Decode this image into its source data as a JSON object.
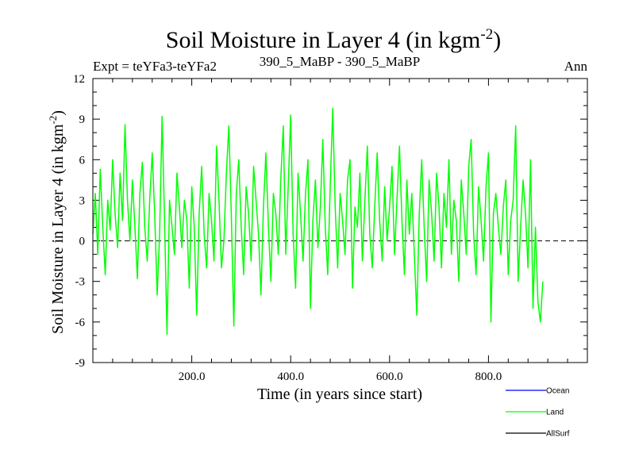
{
  "chart_data": {
    "type": "line",
    "title": "Soil Moisture in Layer 4 (in kgm",
    "title_sup": "-2",
    "title_close": ")",
    "subtitle_left": "Expt = teYFa3-teYFa2",
    "subtitle_center": "390_5_MaBP - 390_5_MaBP",
    "subtitle_right": "Ann",
    "xlabel": "Time (in years since start)",
    "ylabel": "Soil Moisture in Layer 4 (in kgm",
    "ylabel_sup": "-2",
    "ylabel_close": ")",
    "xlim": [
      0,
      1000
    ],
    "ylim": [
      -9,
      12
    ],
    "x_ticks": [
      200,
      400,
      600,
      800
    ],
    "x_tick_labels": [
      "200.0",
      "400.0",
      "600.0",
      "800.0"
    ],
    "y_ticks": [
      -9,
      -6,
      -3,
      0,
      3,
      6,
      9,
      12
    ],
    "y_tick_labels": [
      "-9",
      "-6",
      "-3",
      "0",
      "3",
      "6",
      "9",
      "12"
    ],
    "zero_line": {
      "y": 0,
      "style": "dashed"
    },
    "legend": [
      {
        "name": "Ocean",
        "color": "#0000ff"
      },
      {
        "name": "Land",
        "color": "#00ff00"
      },
      {
        "name": "AllSurf",
        "color": "#000000"
      }
    ],
    "series": [
      {
        "name": "Land",
        "color": "#00ff00",
        "x_start": 0,
        "x_step": 5,
        "values": [
          0.5,
          3.5,
          -1.0,
          5.3,
          1.0,
          -2.5,
          3.0,
          0.8,
          6.0,
          2.0,
          -0.5,
          5.0,
          1.5,
          8.6,
          3.0,
          0.0,
          4.5,
          1.0,
          -2.8,
          3.5,
          5.8,
          1.0,
          -1.5,
          3.0,
          6.5,
          2.0,
          -4.0,
          0.5,
          9.2,
          1.5,
          -6.9,
          3.0,
          1.0,
          -1.0,
          5.0,
          2.5,
          -0.5,
          3.0,
          1.5,
          -3.5,
          4.0,
          1.0,
          -5.5,
          2.0,
          5.5,
          0.5,
          -2.0,
          3.5,
          1.5,
          -1.5,
          7.0,
          3.0,
          -2.0,
          0.0,
          5.0,
          8.5,
          2.0,
          -6.3,
          3.5,
          6.0,
          1.0,
          -2.5,
          4.0,
          2.0,
          -1.5,
          5.5,
          3.0,
          0.5,
          -4.0,
          2.5,
          6.5,
          1.0,
          -3.0,
          3.5,
          2.0,
          -1.0,
          4.5,
          8.5,
          -1.0,
          4.0,
          9.3,
          0.5,
          -3.5,
          5.0,
          2.0,
          -1.5,
          3.5,
          6.0,
          -5.0,
          1.5,
          4.5,
          -0.5,
          2.5,
          7.5,
          1.0,
          -2.5,
          4.0,
          9.8,
          2.5,
          -2.0,
          3.5,
          1.5,
          -1.0,
          4.5,
          6.0,
          -3.5,
          2.5,
          1.0,
          5.0,
          -1.5,
          3.0,
          7.0,
          0.5,
          -2.0,
          2.5,
          6.5,
          1.5,
          -1.5,
          4.0,
          0.0,
          2.5,
          5.5,
          -1.0,
          3.0,
          7.0,
          1.5,
          -2.5,
          4.5,
          0.5,
          3.5,
          -1.0,
          -5.5,
          2.0,
          6.0,
          1.0,
          -3.0,
          4.5,
          2.0,
          -1.5,
          5.0,
          2.5,
          -2.0,
          3.5,
          1.0,
          6.0,
          -1.0,
          3.0,
          1.5,
          -3.0,
          4.5,
          2.0,
          -1.0,
          5.5,
          7.5,
          0.5,
          -2.5,
          4.0,
          1.5,
          -1.5,
          4.0,
          6.5,
          -6.0,
          2.0,
          3.5,
          1.0,
          -1.0,
          2.5,
          4.5,
          -2.5,
          1.5,
          3.0,
          8.5,
          -3.0,
          1.0,
          4.5,
          2.0,
          -2.0,
          6.0,
          -5.0,
          1.0,
          -4.5,
          -6.0,
          -3.0
        ]
      }
    ]
  }
}
